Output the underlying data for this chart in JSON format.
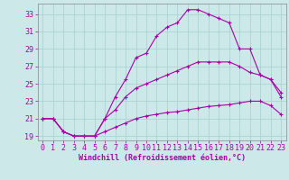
{
  "xlabel": "Windchill (Refroidissement éolien,°C)",
  "background_color": "#cce8e8",
  "grid_color": "#aad4d4",
  "line_color": "#aa00aa",
  "xlim": [
    -0.5,
    23.5
  ],
  "ylim": [
    18.5,
    34.2
  ],
  "xticks": [
    0,
    1,
    2,
    3,
    4,
    5,
    6,
    7,
    8,
    9,
    10,
    11,
    12,
    13,
    14,
    15,
    16,
    17,
    18,
    19,
    20,
    21,
    22,
    23
  ],
  "yticks": [
    19,
    21,
    23,
    25,
    27,
    29,
    31,
    33
  ],
  "line1_x": [
    0,
    1,
    2,
    3,
    4,
    5,
    6,
    7,
    8,
    9,
    10,
    11,
    12,
    13,
    14,
    15,
    16,
    17,
    18,
    19,
    20,
    21,
    22,
    23
  ],
  "line1_y": [
    21.0,
    21.0,
    19.5,
    19.0,
    19.0,
    19.0,
    21.0,
    23.5,
    25.5,
    28.0,
    28.5,
    30.5,
    31.5,
    32.0,
    33.5,
    33.5,
    33.0,
    32.5,
    32.0,
    29.0,
    29.0,
    26.0,
    25.5,
    23.5
  ],
  "line2_x": [
    0,
    1,
    2,
    3,
    4,
    5,
    6,
    7,
    8,
    9,
    10,
    11,
    12,
    13,
    14,
    15,
    16,
    17,
    18,
    19,
    20,
    21,
    22,
    23
  ],
  "line2_y": [
    21.0,
    21.0,
    19.5,
    19.0,
    19.0,
    19.0,
    21.0,
    22.0,
    23.5,
    24.5,
    25.0,
    25.5,
    26.0,
    26.5,
    27.0,
    27.5,
    27.5,
    27.5,
    27.5,
    27.0,
    26.3,
    26.0,
    25.5,
    24.0
  ],
  "line3_x": [
    0,
    1,
    2,
    3,
    4,
    5,
    6,
    7,
    8,
    9,
    10,
    11,
    12,
    13,
    14,
    15,
    16,
    17,
    18,
    19,
    20,
    21,
    22,
    23
  ],
  "line3_y": [
    21.0,
    21.0,
    19.5,
    19.0,
    19.0,
    19.0,
    19.5,
    20.0,
    20.5,
    21.0,
    21.3,
    21.5,
    21.7,
    21.8,
    22.0,
    22.2,
    22.4,
    22.5,
    22.6,
    22.8,
    23.0,
    23.0,
    22.5,
    21.5
  ],
  "tick_fontsize": 6,
  "xlabel_fontsize": 6,
  "marker_size": 3,
  "line_width": 0.8
}
